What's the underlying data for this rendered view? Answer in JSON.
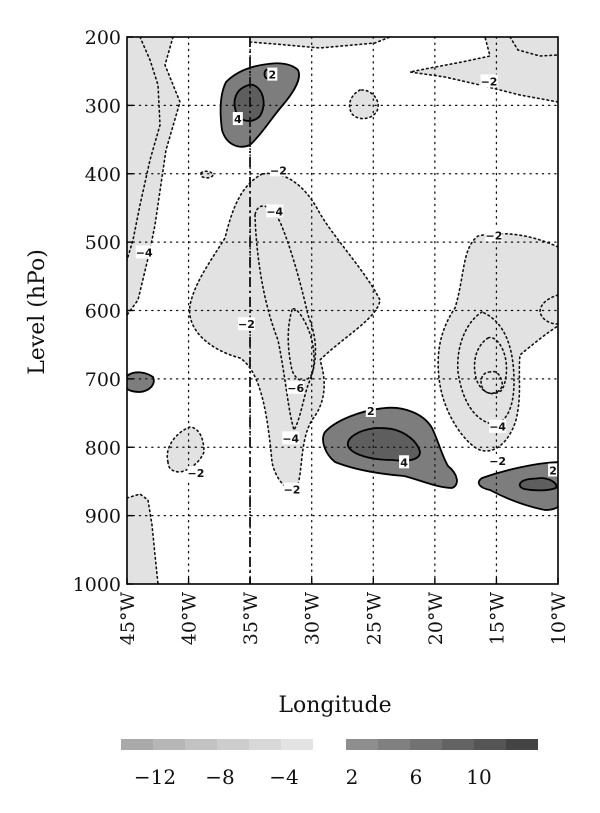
{
  "chart_data": {
    "type": "heatmap",
    "subtype": "longitude-pressure contour cross-section",
    "xlabel": "Longitude",
    "ylabel": "Level (hPo)",
    "x_ticks": [
      "45°W",
      "40°W",
      "35°W",
      "30°W",
      "25°W",
      "20°W",
      "15°W",
      "10°W"
    ],
    "x_tick_values": [
      -45,
      -40,
      -35,
      -30,
      -25,
      -20,
      -15,
      -10
    ],
    "y_ticks": [
      "200",
      "300",
      "400",
      "500",
      "600",
      "700",
      "800",
      "900",
      "1000"
    ],
    "y_tick_values": [
      200,
      300,
      400,
      500,
      600,
      700,
      800,
      900,
      1000
    ],
    "xlim": [
      -45,
      -10
    ],
    "ylim": [
      1000,
      200
    ],
    "grid": true,
    "reference_line": {
      "longitude": -35,
      "style": "dash-dot"
    },
    "contour_labels": [
      {
        "text": "2",
        "lon": -33.2,
        "level": 255
      },
      {
        "text": "4",
        "lon": -36.0,
        "level": 320
      },
      {
        "text": "−2",
        "lon": -15.6,
        "level": 265
      },
      {
        "text": "−2",
        "lon": -32.7,
        "level": 395
      },
      {
        "text": "−4",
        "lon": -33.0,
        "level": 455
      },
      {
        "text": "−4",
        "lon": -43.6,
        "level": 515
      },
      {
        "text": "−2",
        "lon": -15.2,
        "level": 490
      },
      {
        "text": "−2",
        "lon": -35.3,
        "level": 620
      },
      {
        "text": "−6",
        "lon": -31.3,
        "level": 713
      },
      {
        "text": "−4",
        "lon": -31.7,
        "level": 787
      },
      {
        "text": "2",
        "lon": -25.2,
        "level": 747
      },
      {
        "text": "4",
        "lon": -22.5,
        "level": 822
      },
      {
        "text": "−4",
        "lon": -14.9,
        "level": 770
      },
      {
        "text": "−2",
        "lon": -14.9,
        "level": 820
      },
      {
        "text": "−2",
        "lon": -39.4,
        "level": 838
      },
      {
        "text": "−2",
        "lon": -31.6,
        "level": 862
      },
      {
        "text": "2",
        "lon": -10.4,
        "level": 834
      }
    ],
    "colorbar": {
      "negative_labels": [
        "−12",
        "−8",
        "−4"
      ],
      "negative_values": [
        -12,
        -8,
        -4
      ],
      "positive_labels": [
        "2",
        "6",
        "10"
      ],
      "positive_values": [
        2,
        6,
        10
      ],
      "negative_colors": [
        "#a9a9a9",
        "#b6b6b6",
        "#c2c2c2",
        "#cdcdcd",
        "#d8d8d8",
        "#e3e3e3"
      ],
      "positive_colors": [
        "#8e8e8e",
        "#808080",
        "#727272",
        "#636363",
        "#555555",
        "#444444"
      ]
    }
  }
}
